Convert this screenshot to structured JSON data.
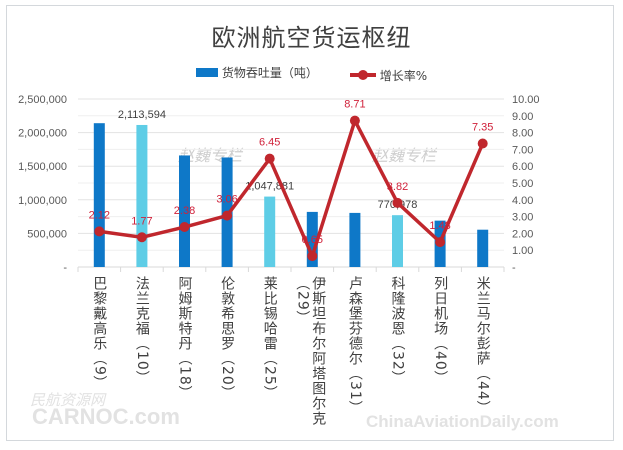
{
  "chart_data": {
    "type": "bar+line",
    "title": "欧洲航空货运枢纽",
    "categories": [
      "巴黎戴高乐（9）",
      "法兰克福（10）",
      "阿姆斯特丹（18）",
      "伦敦希思罗（20）",
      "莱比锡哈雷（25）",
      "伊斯坦布尔阿塔图尔克（29）",
      "卢森堡芬德尔（31）",
      "科隆波恩（32）",
      "列日机场（40）",
      "米兰马尔彭萨（44）"
    ],
    "series": [
      {
        "name": "货物吞吐量（吨）",
        "type": "bar",
        "axis": "left",
        "values": [
          2140000,
          2113594,
          1660000,
          1630000,
          1047881,
          820000,
          805000,
          770978,
          690000,
          555000
        ],
        "data_labels": [
          "",
          "2,113,594",
          "",
          "",
          "1,047,881",
          "",
          "",
          "770,978",
          "",
          ""
        ],
        "colors": [
          "#0e78c8",
          "#5ecde6",
          "#0e78c8",
          "#0e78c8",
          "#5ecde6",
          "#0e78c8",
          "#0e78c8",
          "#5ecde6",
          "#0e78c8",
          "#0e78c8"
        ]
      },
      {
        "name": "增长率%",
        "type": "line",
        "axis": "right",
        "values": [
          2.12,
          1.77,
          2.38,
          3.06,
          6.45,
          0.65,
          8.71,
          3.82,
          1.48,
          7.35
        ],
        "data_labels": [
          "2.12",
          "1.77",
          "2.38",
          "3.06",
          "6.45",
          "0.65",
          "8.71",
          "3.82",
          "1.48",
          "7.35"
        ],
        "color": "#c0272d"
      }
    ],
    "left_axis": {
      "ylim": [
        0,
        2500000
      ],
      "ticks": [
        "-",
        "500,000",
        "1,000,000",
        "1,500,000",
        "2,000,000",
        "2,500,000"
      ]
    },
    "right_axis": {
      "ylim": [
        0,
        10
      ],
      "ticks": [
        "-",
        "1.00",
        "2.00",
        "3.00",
        "4.00",
        "5.00",
        "6.00",
        "7.00",
        "8.00",
        "9.00",
        "10.00"
      ]
    },
    "legend_position": "top",
    "grid": true,
    "xlabel": "",
    "ylabel": ""
  },
  "legend": {
    "bar_label": "货物吞吐量（吨）",
    "line_label": "增长率%",
    "bar_color": "#0e78c8",
    "line_color": "#c0272d"
  },
  "watermarks": {
    "center1": "赵巍专栏",
    "center2": "赵巍专栏",
    "bottom_left_cn": "民航资源网",
    "bottom_left_en": "CARNOC.com",
    "bottom_right": "ChinaAviationDaily.com"
  },
  "categories_display": [
    {
      "name": "巴黎戴高乐",
      "rank": "（9）"
    },
    {
      "name": "法兰克福",
      "rank": "（10）"
    },
    {
      "name": "阿姆斯特丹",
      "rank": "（18）"
    },
    {
      "name": "伦敦希思罗",
      "rank": "（20）"
    },
    {
      "name": "莱比锡哈雷",
      "rank": "（25）"
    },
    {
      "name": "伊斯坦布尔阿塔图尔克",
      "rank": "（29）"
    },
    {
      "name": "卢森堡芬德尔",
      "rank": "（31）"
    },
    {
      "name": "科隆波恩",
      "rank": "（32）"
    },
    {
      "name": "列日机场",
      "rank": "（40）"
    },
    {
      "name": "米兰马尔彭萨",
      "rank": "（44）"
    }
  ]
}
